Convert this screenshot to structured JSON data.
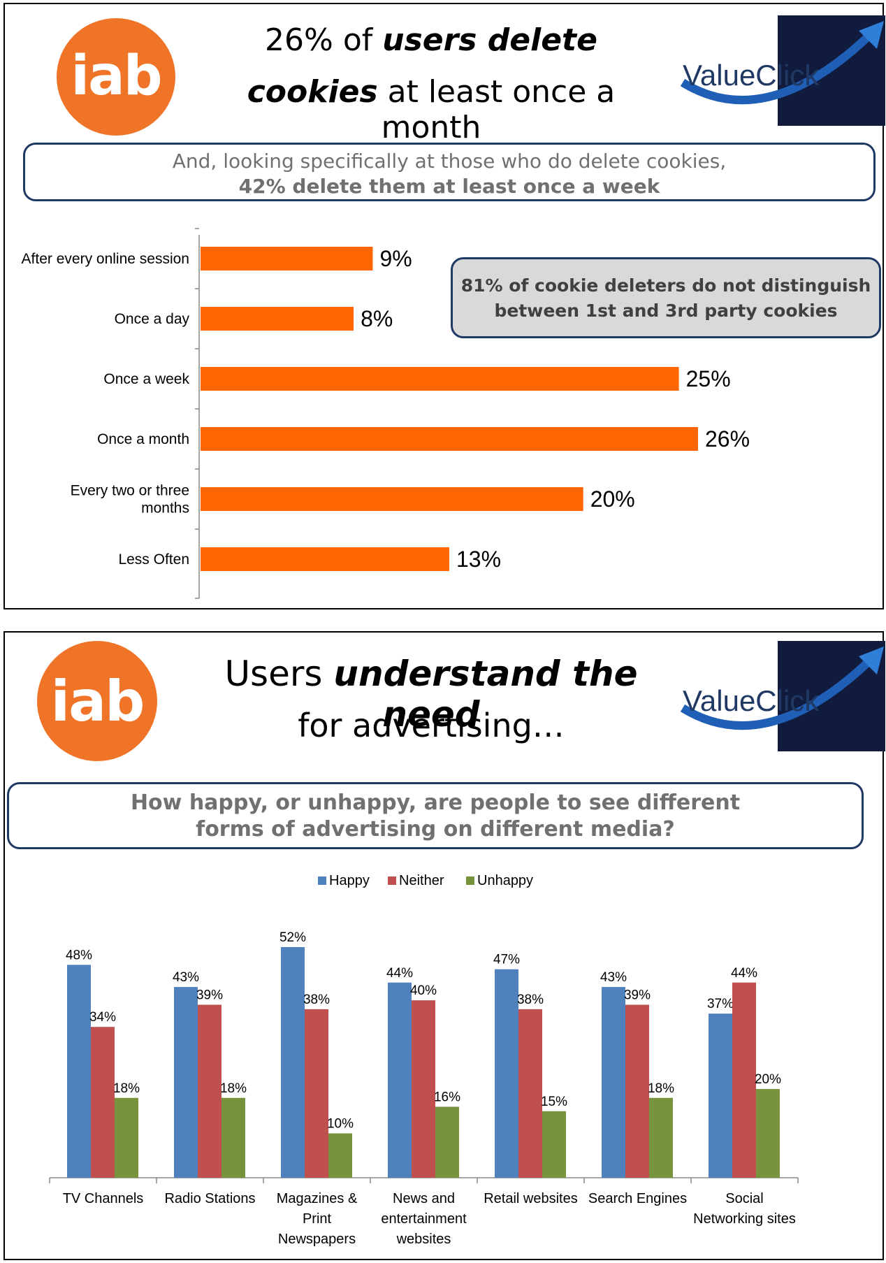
{
  "slide1": {
    "iab_logo": "iab",
    "valueclick_logo": "ValueClick",
    "headline": {
      "l1_pre": "26% of ",
      "l1_emph": "users delete",
      "l2_emph": "cookies",
      "l2_post": " at least once a month"
    },
    "callout": {
      "line1": "And, looking specifically at those who do delete cookies,",
      "line2": "42% delete them at least once a week"
    },
    "note": {
      "line1": "81% of cookie deleters do not distinguish",
      "line2": "between 1st and 3rd party cookies"
    }
  },
  "slide2": {
    "iab_logo": "iab",
    "valueclick_logo": "ValueClick",
    "headline": {
      "l1_pre": "Users ",
      "l1_emph": "understand the need",
      "l2": "for advertising…"
    },
    "callout": {
      "line1": "How happy, or unhappy, are people to see different",
      "line2": "forms of advertising on different media?"
    }
  },
  "colors": {
    "bar_orange": "#ff6600",
    "happy": "#4f81bd",
    "neither": "#c0504d",
    "unhappy": "#77933c",
    "iab_orange": "#f07427",
    "valueclick_navy": "#111b3d",
    "border_navy": "#1f3864"
  },
  "chart_data": [
    {
      "type": "bar",
      "orientation": "horizontal",
      "categories": [
        "After every online session",
        "Once a day",
        "Once a week",
        "Once a month",
        "Every two or three months",
        "Less Often"
      ],
      "category_lines": [
        [
          "After every online session"
        ],
        [
          "Once a day"
        ],
        [
          "Once a week"
        ],
        [
          "Once a month"
        ],
        [
          "Every two or three",
          "months"
        ],
        [
          "Less Often"
        ]
      ],
      "values": [
        9,
        8,
        25,
        26,
        20,
        13
      ],
      "value_labels": [
        "9%",
        "8%",
        "25%",
        "26%",
        "20%",
        "13%"
      ],
      "xlim": [
        0,
        28
      ],
      "title": "",
      "xlabel": "",
      "ylabel": "",
      "grid": false
    },
    {
      "type": "bar",
      "categories": [
        "TV Channels",
        "Radio Stations",
        "Magazines & Print Newspapers",
        "News and entertainment websites",
        "Retail websites",
        "Search Engines",
        "Social Networking sites"
      ],
      "category_lines": [
        [
          "TV Channels"
        ],
        [
          "Radio Stations"
        ],
        [
          "Magazines &",
          "Print",
          "Newspapers"
        ],
        [
          "News and",
          "entertainment",
          "websites"
        ],
        [
          "Retail websites"
        ],
        [
          "Search Engines"
        ],
        [
          "Social",
          "Networking sites"
        ]
      ],
      "series": [
        {
          "name": "Happy",
          "values": [
            48,
            43,
            52,
            44,
            47,
            43,
            37
          ],
          "labels": [
            "48%",
            "43%",
            "52%",
            "44%",
            "47%",
            "43%",
            "37%"
          ]
        },
        {
          "name": "Neither",
          "values": [
            34,
            39,
            38,
            40,
            38,
            39,
            44
          ],
          "labels": [
            "34%",
            "39%",
            "38%",
            "40%",
            "38%",
            "39%",
            "44%"
          ]
        },
        {
          "name": "Unhappy",
          "values": [
            18,
            18,
            10,
            16,
            15,
            18,
            20
          ],
          "labels": [
            "18%",
            "18%",
            "10%",
            "16%",
            "15%",
            "18%",
            "20%"
          ]
        }
      ],
      "ylim": [
        0,
        55
      ],
      "legend": "top-center",
      "title": "",
      "xlabel": "",
      "ylabel": "",
      "grid": false
    }
  ]
}
